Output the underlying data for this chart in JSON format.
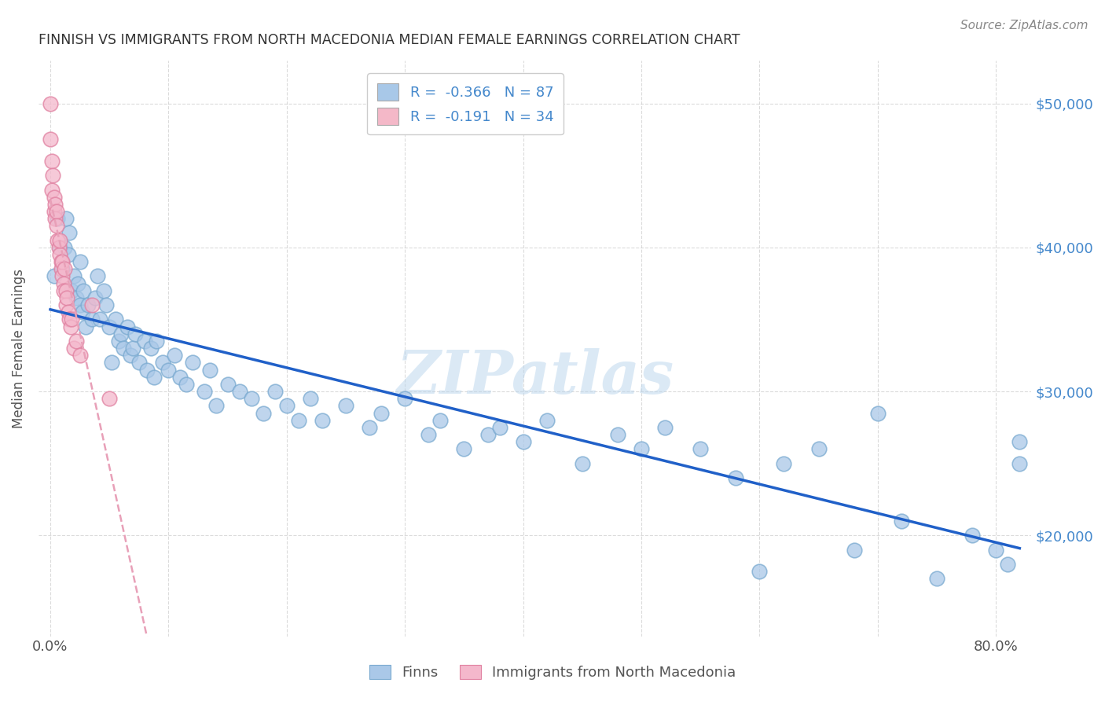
{
  "title": "FINNISH VS IMMIGRANTS FROM NORTH MACEDONIA MEDIAN FEMALE EARNINGS CORRELATION CHART",
  "source": "Source: ZipAtlas.com",
  "ylabel": "Median Female Earnings",
  "y_ticks": [
    20000,
    30000,
    40000,
    50000
  ],
  "y_tick_labels": [
    "$20,000",
    "$30,000",
    "$40,000",
    "$50,000"
  ],
  "ylim": [
    13000,
    53000
  ],
  "xlim": [
    -0.01,
    0.83
  ],
  "legend_entries": [
    {
      "label": "R =  -0.366   N = 87",
      "color": "#a8c8e8"
    },
    {
      "label": "R =  -0.191   N = 34",
      "color": "#f4b8c8"
    }
  ],
  "legend_labels_bottom": [
    "Finns",
    "Immigrants from North Macedonia"
  ],
  "watermark": "ZIPatlas",
  "finn_color": "#aac8e8",
  "finn_edge_color": "#7aaad0",
  "mac_color": "#f4b8cc",
  "mac_edge_color": "#e080a0",
  "trend_finn_color": "#2060c8",
  "trend_mac_color": "#e8a0b8",
  "background_color": "#ffffff",
  "grid_color": "#cccccc",
  "title_color": "#333333",
  "axis_label_color": "#4488cc",
  "finns_x": [
    0.003,
    0.006,
    0.008,
    0.01,
    0.012,
    0.013,
    0.015,
    0.016,
    0.018,
    0.02,
    0.022,
    0.023,
    0.025,
    0.025,
    0.027,
    0.028,
    0.03,
    0.032,
    0.035,
    0.038,
    0.04,
    0.042,
    0.045,
    0.047,
    0.05,
    0.052,
    0.055,
    0.058,
    0.06,
    0.062,
    0.065,
    0.068,
    0.07,
    0.072,
    0.075,
    0.08,
    0.082,
    0.085,
    0.088,
    0.09,
    0.095,
    0.1,
    0.105,
    0.11,
    0.115,
    0.12,
    0.13,
    0.135,
    0.14,
    0.15,
    0.16,
    0.17,
    0.18,
    0.19,
    0.2,
    0.21,
    0.22,
    0.23,
    0.25,
    0.27,
    0.28,
    0.3,
    0.32,
    0.33,
    0.35,
    0.37,
    0.38,
    0.4,
    0.42,
    0.45,
    0.48,
    0.5,
    0.52,
    0.55,
    0.58,
    0.6,
    0.62,
    0.65,
    0.68,
    0.7,
    0.72,
    0.75,
    0.78,
    0.8,
    0.81,
    0.82,
    0.82
  ],
  "finns_y": [
    38000,
    42000,
    40000,
    38500,
    40000,
    42000,
    39500,
    41000,
    37000,
    38000,
    36500,
    37500,
    36000,
    39000,
    35500,
    37000,
    34500,
    36000,
    35000,
    36500,
    38000,
    35000,
    37000,
    36000,
    34500,
    32000,
    35000,
    33500,
    34000,
    33000,
    34500,
    32500,
    33000,
    34000,
    32000,
    33500,
    31500,
    33000,
    31000,
    33500,
    32000,
    31500,
    32500,
    31000,
    30500,
    32000,
    30000,
    31500,
    29000,
    30500,
    30000,
    29500,
    28500,
    30000,
    29000,
    28000,
    29500,
    28000,
    29000,
    27500,
    28500,
    29500,
    27000,
    28000,
    26000,
    27000,
    27500,
    26500,
    28000,
    25000,
    27000,
    26000,
    27500,
    26000,
    24000,
    17500,
    25000,
    26000,
    19000,
    28500,
    21000,
    17000,
    20000,
    19000,
    18000,
    26500,
    25000
  ],
  "mac_x": [
    0.0,
    0.0,
    0.001,
    0.001,
    0.002,
    0.003,
    0.003,
    0.004,
    0.004,
    0.005,
    0.005,
    0.006,
    0.007,
    0.008,
    0.008,
    0.009,
    0.009,
    0.01,
    0.01,
    0.011,
    0.011,
    0.012,
    0.013,
    0.013,
    0.014,
    0.015,
    0.016,
    0.017,
    0.018,
    0.02,
    0.022,
    0.025,
    0.035,
    0.05
  ],
  "mac_y": [
    50000,
    47500,
    46000,
    44000,
    45000,
    43500,
    42500,
    43000,
    42000,
    42500,
    41500,
    40500,
    40000,
    39500,
    40500,
    39000,
    38500,
    38000,
    39000,
    37500,
    37000,
    38500,
    37000,
    36000,
    36500,
    35500,
    35000,
    34500,
    35000,
    33000,
    33500,
    32500,
    36000,
    29500
  ]
}
